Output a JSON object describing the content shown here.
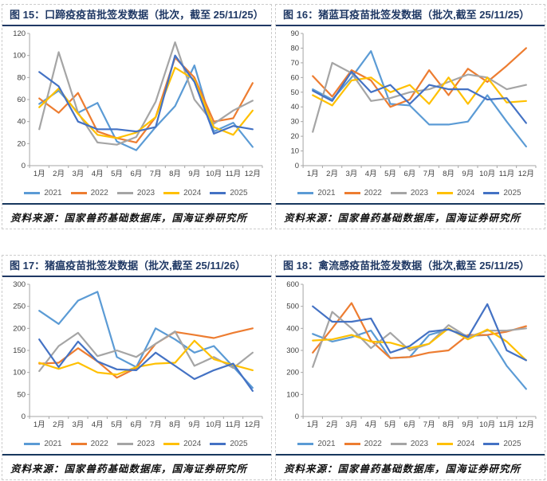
{
  "page": {
    "background": "#ffffff"
  },
  "source_note": "资料来源：国家兽药基础数据库，国海证券研究所",
  "chart_data": [
    {
      "type": "line",
      "title": "图 15：口蹄疫疫苗批签发数据（批次，截至 25/11/25）",
      "source": "资料来源：国家兽药基础数据库，国海证券研究所",
      "x": [
        "1月",
        "2月",
        "3月",
        "4月",
        "5月",
        "6月",
        "7月",
        "8月",
        "9月",
        "10月",
        "11月",
        "12月"
      ],
      "ylim": [
        0,
        120
      ],
      "ytick_step": 20,
      "grid": false,
      "legend_position": "bottom",
      "series": [
        {
          "name": "2021",
          "color": "#5B9BD5",
          "values": [
            56,
            68,
            48,
            57,
            22,
            14,
            35,
            54,
            91,
            31,
            39,
            17
          ]
        },
        {
          "name": "2022",
          "color": "#ED7D31",
          "values": [
            61,
            48,
            66,
            31,
            25,
            21,
            44,
            98,
            80,
            40,
            43,
            75
          ]
        },
        {
          "name": "2023",
          "color": "#A5A5A5",
          "values": [
            33,
            103,
            48,
            21,
            19,
            26,
            58,
            112,
            60,
            38,
            50,
            59
          ]
        },
        {
          "name": "2024",
          "color": "#FFC000",
          "values": [
            53,
            70,
            47,
            28,
            25,
            30,
            44,
            89,
            78,
            35,
            28,
            50
          ]
        },
        {
          "name": "2025",
          "color": "#4472C4",
          "values": [
            85,
            72,
            40,
            33,
            33,
            31,
            35,
            100,
            76,
            29,
            36,
            33
          ]
        }
      ]
    },
    {
      "type": "line",
      "title": "图 16：猪蓝耳疫苗批签发数据（批次,截至 25/11/25）",
      "source": "资料来源：国家兽药基础数据库，国海证券研究所",
      "x": [
        "1月",
        "2月",
        "3月",
        "4月",
        "5月",
        "6月",
        "7月",
        "8月",
        "9月",
        "10月",
        "11月",
        "12月"
      ],
      "ylim": [
        0,
        90
      ],
      "ytick_step": 10,
      "grid": false,
      "legend_position": "bottom",
      "series": [
        {
          "name": "2021",
          "color": "#5B9BD5",
          "values": [
            52,
            45,
            60,
            78,
            42,
            41,
            28,
            28,
            30,
            48,
            30,
            13
          ]
        },
        {
          "name": "2022",
          "color": "#ED7D31",
          "values": [
            61,
            47,
            65,
            58,
            40,
            45,
            65,
            48,
            66,
            57,
            68,
            80
          ]
        },
        {
          "name": "2023",
          "color": "#A5A5A5",
          "values": [
            23,
            70,
            63,
            44,
            46,
            50,
            52,
            57,
            62,
            60,
            52,
            55
          ]
        },
        {
          "name": "2024",
          "color": "#FFC000",
          "values": [
            48,
            41,
            58,
            60,
            50,
            55,
            42,
            60,
            42,
            60,
            43,
            44
          ]
        },
        {
          "name": "2025",
          "color": "#4472C4",
          "values": [
            51,
            44,
            64,
            50,
            55,
            42,
            55,
            52,
            52,
            45,
            46,
            29
          ]
        }
      ]
    },
    {
      "type": "line",
      "title": "图 17：猪瘟疫苗批签发数据（批次,截至 25/11/26）",
      "source": "资料来源：国家兽药基础数据库，国海证券研究所",
      "x": [
        "1月",
        "2月",
        "3月",
        "4月",
        "5月",
        "6月",
        "7月",
        "8月",
        "9月",
        "10月",
        "11月",
        "12月"
      ],
      "ylim": [
        0,
        300
      ],
      "ytick_step": 50,
      "grid": false,
      "legend_position": "bottom",
      "series": [
        {
          "name": "2021",
          "color": "#5B9BD5",
          "values": [
            240,
            210,
            263,
            283,
            135,
            112,
            200,
            175,
            145,
            160,
            113,
            65
          ]
        },
        {
          "name": "2022",
          "color": "#ED7D31",
          "values": [
            120,
            122,
            155,
            125,
            88,
            110,
            165,
            192,
            185,
            178,
            190,
            200
          ]
        },
        {
          "name": "2023",
          "color": "#A5A5A5",
          "values": [
            103,
            160,
            190,
            137,
            150,
            135,
            165,
            193,
            115,
            135,
            110,
            145
          ]
        },
        {
          "name": "2024",
          "color": "#FFC000",
          "values": [
            122,
            108,
            122,
            100,
            95,
            112,
            120,
            122,
            172,
            130,
            117,
            105
          ]
        },
        {
          "name": "2025",
          "color": "#4472C4",
          "values": [
            175,
            112,
            170,
            125,
            107,
            105,
            145,
            115,
            85,
            105,
            120,
            58
          ]
        }
      ]
    },
    {
      "type": "line",
      "title": "图 18：禽流感疫苗批签发数据（批次,截至 25/11/25）",
      "source": "资料来源：国家兽药基础数据库，国海证券研究所",
      "x": [
        "1月",
        "2月",
        "3月",
        "4月",
        "5月",
        "6月",
        "7月",
        "8月",
        "9月",
        "10月",
        "11月",
        "12月"
      ],
      "ylim": [
        0,
        600
      ],
      "ytick_step": 100,
      "grid": false,
      "legend_position": "bottom",
      "series": [
        {
          "name": "2021",
          "color": "#5B9BD5",
          "values": [
            375,
            340,
            360,
            390,
            265,
            270,
            370,
            395,
            365,
            370,
            230,
            125
          ]
        },
        {
          "name": "2022",
          "color": "#ED7D31",
          "values": [
            290,
            400,
            515,
            345,
            265,
            270,
            290,
            300,
            370,
            370,
            385,
            410
          ]
        },
        {
          "name": "2023",
          "color": "#A5A5A5",
          "values": [
            225,
            475,
            400,
            310,
            380,
            300,
            330,
            415,
            360,
            390,
            390,
            400
          ]
        },
        {
          "name": "2024",
          "color": "#FFC000",
          "values": [
            345,
            350,
            370,
            340,
            335,
            310,
            330,
            400,
            350,
            395,
            340,
            255
          ]
        },
        {
          "name": "2025",
          "color": "#4472C4",
          "values": [
            500,
            430,
            430,
            445,
            290,
            320,
            385,
            395,
            360,
            510,
            300,
            255
          ]
        }
      ]
    }
  ],
  "style": {
    "axis_color": "#a6a6a6",
    "tick_label_color": "#404040",
    "legend_label_color": "#595959",
    "title_color": "#1f3864"
  }
}
